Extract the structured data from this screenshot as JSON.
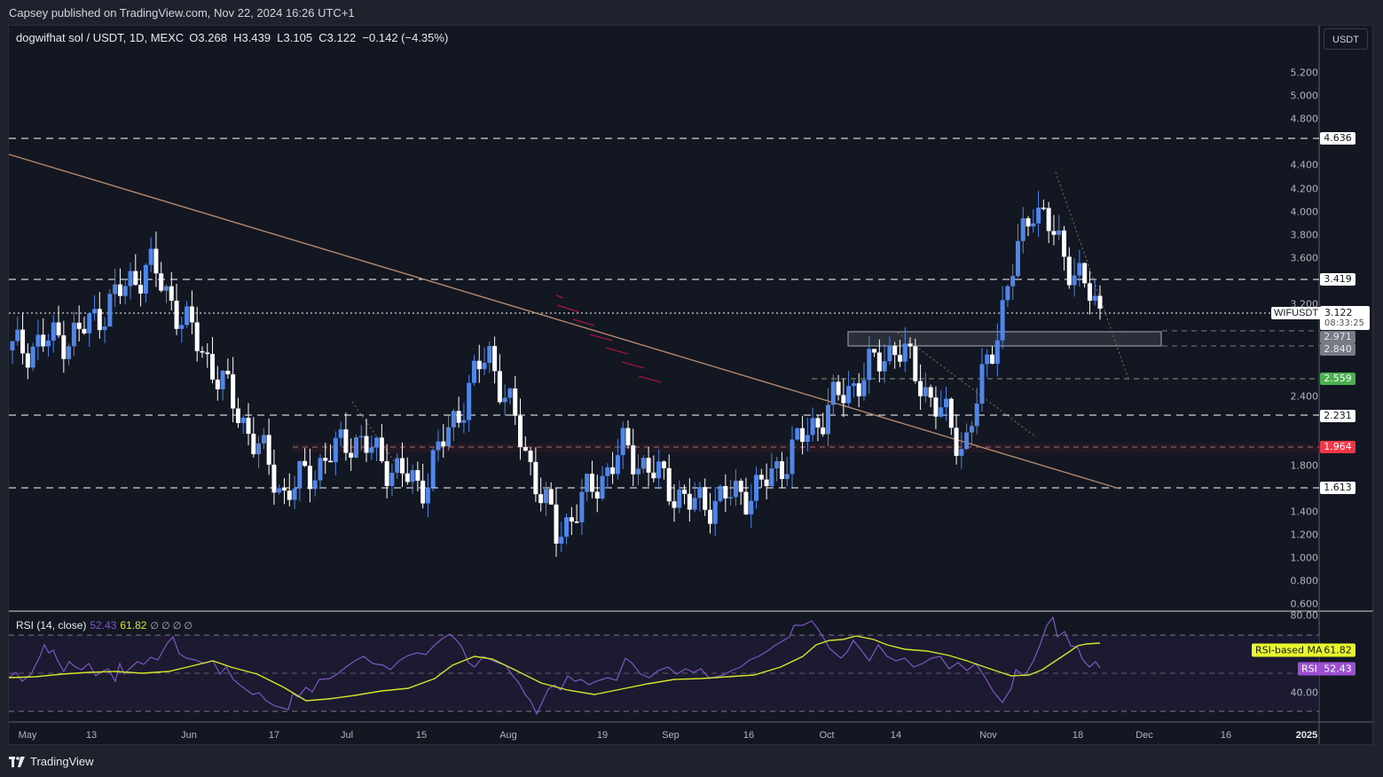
{
  "caption": "Capsey published on TradingView.com, Nov 22, 2024 16:26 UTC+1",
  "header": {
    "symbol": "dogwifhat sol / USDT, 1D, MEXC",
    "ohlc": "O3.268  H3.439  L3.105  C3.122  −0.142 (−4.35%)"
  },
  "currency_button": "USDT",
  "price_axis": [
    "5.200",
    "5.000",
    "4.800",
    "4.400",
    "4.200",
    "4.000",
    "3.800",
    "3.600",
    "3.200",
    "2.400",
    "1.800",
    "1.400",
    "1.200",
    "1.000",
    "0.800",
    "0.600"
  ],
  "price_tags": {
    "level_4636": "4.636",
    "level_3419": "3.419",
    "zone_top": "2.971",
    "zone_bottom": "2.840",
    "level_2559": "2.559",
    "level_2231": "2.231",
    "level_1964": "1.964",
    "level_1613": "1.613"
  },
  "last_price": {
    "symbol": "WIFUSDT",
    "price": "3.122",
    "countdown": "08:33:25"
  },
  "rsi": {
    "title": "RSI (14, close)",
    "value": "52.43",
    "ma_value": "61.82",
    "extras": "∅ ∅ ∅ ∅",
    "axis": [
      "80.00",
      "40.00"
    ],
    "ma_tag_label": "RSI-based MA",
    "rsi_tag_label": "RSI"
  },
  "time_axis": [
    "May",
    "13",
    "Jun",
    "17",
    "Jul",
    "15",
    "Aug",
    "19",
    "Sep",
    "16",
    "Oct",
    "14",
    "Nov",
    "18",
    "Dec",
    "16",
    "2025"
  ],
  "brand": "TradingView",
  "colors": {
    "background": "#131722",
    "up_candle": "#4f86e8",
    "down_candle": "#ffffff",
    "rsi_line": "#7e57c2",
    "rsi_ma": "#d4e52b",
    "trendline": "#b5886a",
    "support_green": "#4caf50",
    "resistance_red": "#f23645"
  },
  "chart_data": {
    "type": "candlestick",
    "title": "dogwifhat sol / USDT, 1D, MEXC",
    "xlabel": "",
    "ylabel": "USDT",
    "ylim": [
      0.6,
      5.3
    ],
    "grid": false,
    "last": {
      "open": 3.268,
      "high": 3.439,
      "low": 3.105,
      "close": 3.122,
      "change": -0.142,
      "change_pct": -4.35
    },
    "horizontal_levels": [
      4.636,
      3.419,
      2.971,
      2.84,
      2.559,
      2.231,
      1.964,
      1.613
    ],
    "zone": {
      "top": 2.971,
      "bottom": 2.84,
      "from": "Oct 6",
      "to": "Nov 30"
    },
    "trendline": {
      "from": {
        "date": "Apr 30",
        "price": 4.5
      },
      "to": {
        "date": "Nov 28",
        "price": 1.62
      }
    },
    "approx_closes": [
      {
        "date": "May 1",
        "close": 2.8
      },
      {
        "date": "May 13",
        "close": 2.95
      },
      {
        "date": "May 29",
        "close": 3.55
      },
      {
        "date": "Jun 10",
        "close": 2.6
      },
      {
        "date": "Jun 24",
        "close": 1.55
      },
      {
        "date": "Jul 5",
        "close": 2.05
      },
      {
        "date": "Jul 14",
        "close": 1.6
      },
      {
        "date": "Jul 22",
        "close": 2.8
      },
      {
        "date": "Aug 5",
        "close": 1.2
      },
      {
        "date": "Aug 24",
        "close": 1.95
      },
      {
        "date": "Sep 6",
        "close": 1.45
      },
      {
        "date": "Sep 20",
        "close": 1.6
      },
      {
        "date": "Oct 1",
        "close": 2.3
      },
      {
        "date": "Oct 12",
        "close": 2.85
      },
      {
        "date": "Nov 4",
        "close": 1.95
      },
      {
        "date": "Nov 13",
        "close": 4.1
      },
      {
        "date": "Nov 22",
        "close": 3.122
      }
    ],
    "indicators": [
      {
        "name": "RSI (14, close)",
        "value": 52.43,
        "bands": [
          70,
          30
        ],
        "axis": [
          40,
          80
        ]
      },
      {
        "name": "RSI-based MA",
        "value": 61.82
      }
    ],
    "x_ticks": [
      "May",
      "13",
      "Jun",
      "17",
      "Jul",
      "15",
      "Aug",
      "19",
      "Sep",
      "16",
      "Oct",
      "14",
      "Nov",
      "18",
      "Dec",
      "16",
      "2025"
    ]
  }
}
